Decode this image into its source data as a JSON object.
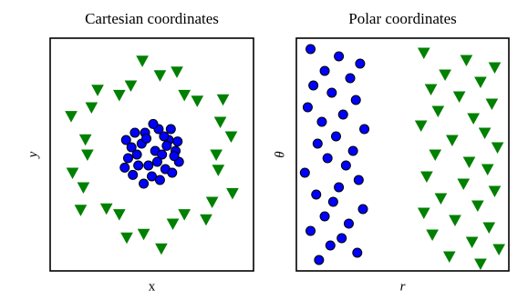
{
  "chart_data": [
    {
      "type": "scatter",
      "title": "Cartesian coordinates",
      "x_label": "x",
      "y_label": "y",
      "xlim": [
        -1.5,
        1.5
      ],
      "ylim": [
        -1.6,
        1.6
      ],
      "series": [
        {
          "color": "#0000ff",
          "marker": "o",
          "x": [
            -0.3,
            -0.1,
            0.1,
            0.25,
            0.35,
            -0.2,
            0.0,
            0.2,
            -0.35,
            0.3,
            -0.15,
            0.05,
            0.15,
            -0.25,
            0.4,
            -0.05,
            0.28,
            -0.38,
            0.12,
            -0.12,
            0.22,
            -0.28,
            0.02,
            0.33,
            -0.08,
            0.18,
            -0.22,
            0.08,
            -0.4,
            0.38
          ],
          "y": [
            0.1,
            0.3,
            0.35,
            0.2,
            0.05,
            -0.15,
            -0.3,
            -0.2,
            -0.05,
            -0.25,
            0.15,
            0.05,
            0.0,
            0.3,
            -0.1,
            -0.15,
            0.35,
            0.2,
            -0.35,
            -0.4,
            0.12,
            -0.28,
            0.42,
            -0.02,
            0.22,
            0.25,
            0.0,
            -0.1,
            -0.18,
            0.18
          ]
        },
        {
          "color": "#008000",
          "marker": "v",
          "x": [
            0.95,
            1.17,
            1.01,
            1.05,
            0.67,
            0.48,
            0.37,
            0.12,
            -0.14,
            -0.31,
            -0.48,
            -0.8,
            -0.89,
            -1.19,
            -0.98,
            -0.95,
            -1.17,
            -1.01,
            -1.05,
            -0.67,
            -0.48,
            -0.37,
            -0.12,
            0.14,
            0.31,
            0.48,
            0.8,
            0.89,
            1.19,
            0.98
          ],
          "y": [
            0.0,
            0.25,
            0.45,
            0.76,
            0.74,
            0.82,
            1.14,
            1.09,
            1.29,
            0.95,
            0.82,
            0.89,
            0.65,
            0.53,
            0.21,
            0.0,
            -0.25,
            -0.45,
            -0.76,
            -0.74,
            -0.82,
            -1.14,
            -1.09,
            -1.29,
            -0.95,
            -0.82,
            -0.89,
            -0.65,
            -0.53,
            -0.21
          ]
        }
      ]
    },
    {
      "type": "scatter",
      "title": "Polar coordinates",
      "x_label": "r",
      "y_label": "θ",
      "xlim": [
        0,
        1.5
      ],
      "ylim": [
        0,
        6.4
      ],
      "series": [
        {
          "color": "#0000ff",
          "marker": "o",
          "x": [
            0.1,
            0.3,
            0.45,
            0.2,
            0.38,
            0.12,
            0.25,
            0.42,
            0.08,
            0.33,
            0.18,
            0.48,
            0.28,
            0.15,
            0.4,
            0.22,
            0.35,
            0.06,
            0.44,
            0.3,
            0.14,
            0.26,
            0.47,
            0.2,
            0.37,
            0.1,
            0.32,
            0.24,
            0.43,
            0.16
          ],
          "y": [
            6.1,
            5.9,
            5.7,
            5.5,
            5.3,
            5.1,
            4.9,
            4.7,
            4.5,
            4.3,
            4.1,
            3.9,
            3.7,
            3.5,
            3.3,
            3.1,
            2.9,
            2.7,
            2.5,
            2.3,
            2.1,
            1.9,
            1.7,
            1.5,
            1.3,
            1.1,
            0.9,
            0.7,
            0.5,
            0.3
          ]
        },
        {
          "color": "#008000",
          "marker": "v",
          "x": [
            0.9,
            1.2,
            1.4,
            1.05,
            1.3,
            0.95,
            1.15,
            1.38,
            1.0,
            1.25,
            0.88,
            1.33,
            1.1,
            1.42,
            0.98,
            1.22,
            1.35,
            0.92,
            1.18,
            1.4,
            1.02,
            1.28,
            0.9,
            1.12,
            1.36,
            0.96,
            1.24,
            1.43,
            1.08,
            1.3
          ],
          "y": [
            6.0,
            5.8,
            5.6,
            5.4,
            5.2,
            5.0,
            4.8,
            4.6,
            4.4,
            4.2,
            4.0,
            3.8,
            3.6,
            3.4,
            3.2,
            3.0,
            2.8,
            2.6,
            2.4,
            2.2,
            2.0,
            1.8,
            1.6,
            1.4,
            1.2,
            1.0,
            0.8,
            0.6,
            0.4,
            0.2
          ]
        }
      ]
    }
  ]
}
